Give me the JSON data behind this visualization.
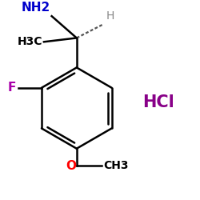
{
  "background_color": "#ffffff",
  "ring_color": "#000000",
  "bond_color": "#000000",
  "nh2_color": "#0000cc",
  "h_color": "#888888",
  "f_color": "#aa00aa",
  "o_color": "#ff0000",
  "hcl_color": "#880088",
  "ch3_color": "#000000",
  "NH2_label": "NH2",
  "H_label": "H",
  "CH3_left_label": "H3C",
  "F_label": "F",
  "O_label": "O",
  "CH3_right_label": "CH3",
  "HCl_label": "HCl"
}
